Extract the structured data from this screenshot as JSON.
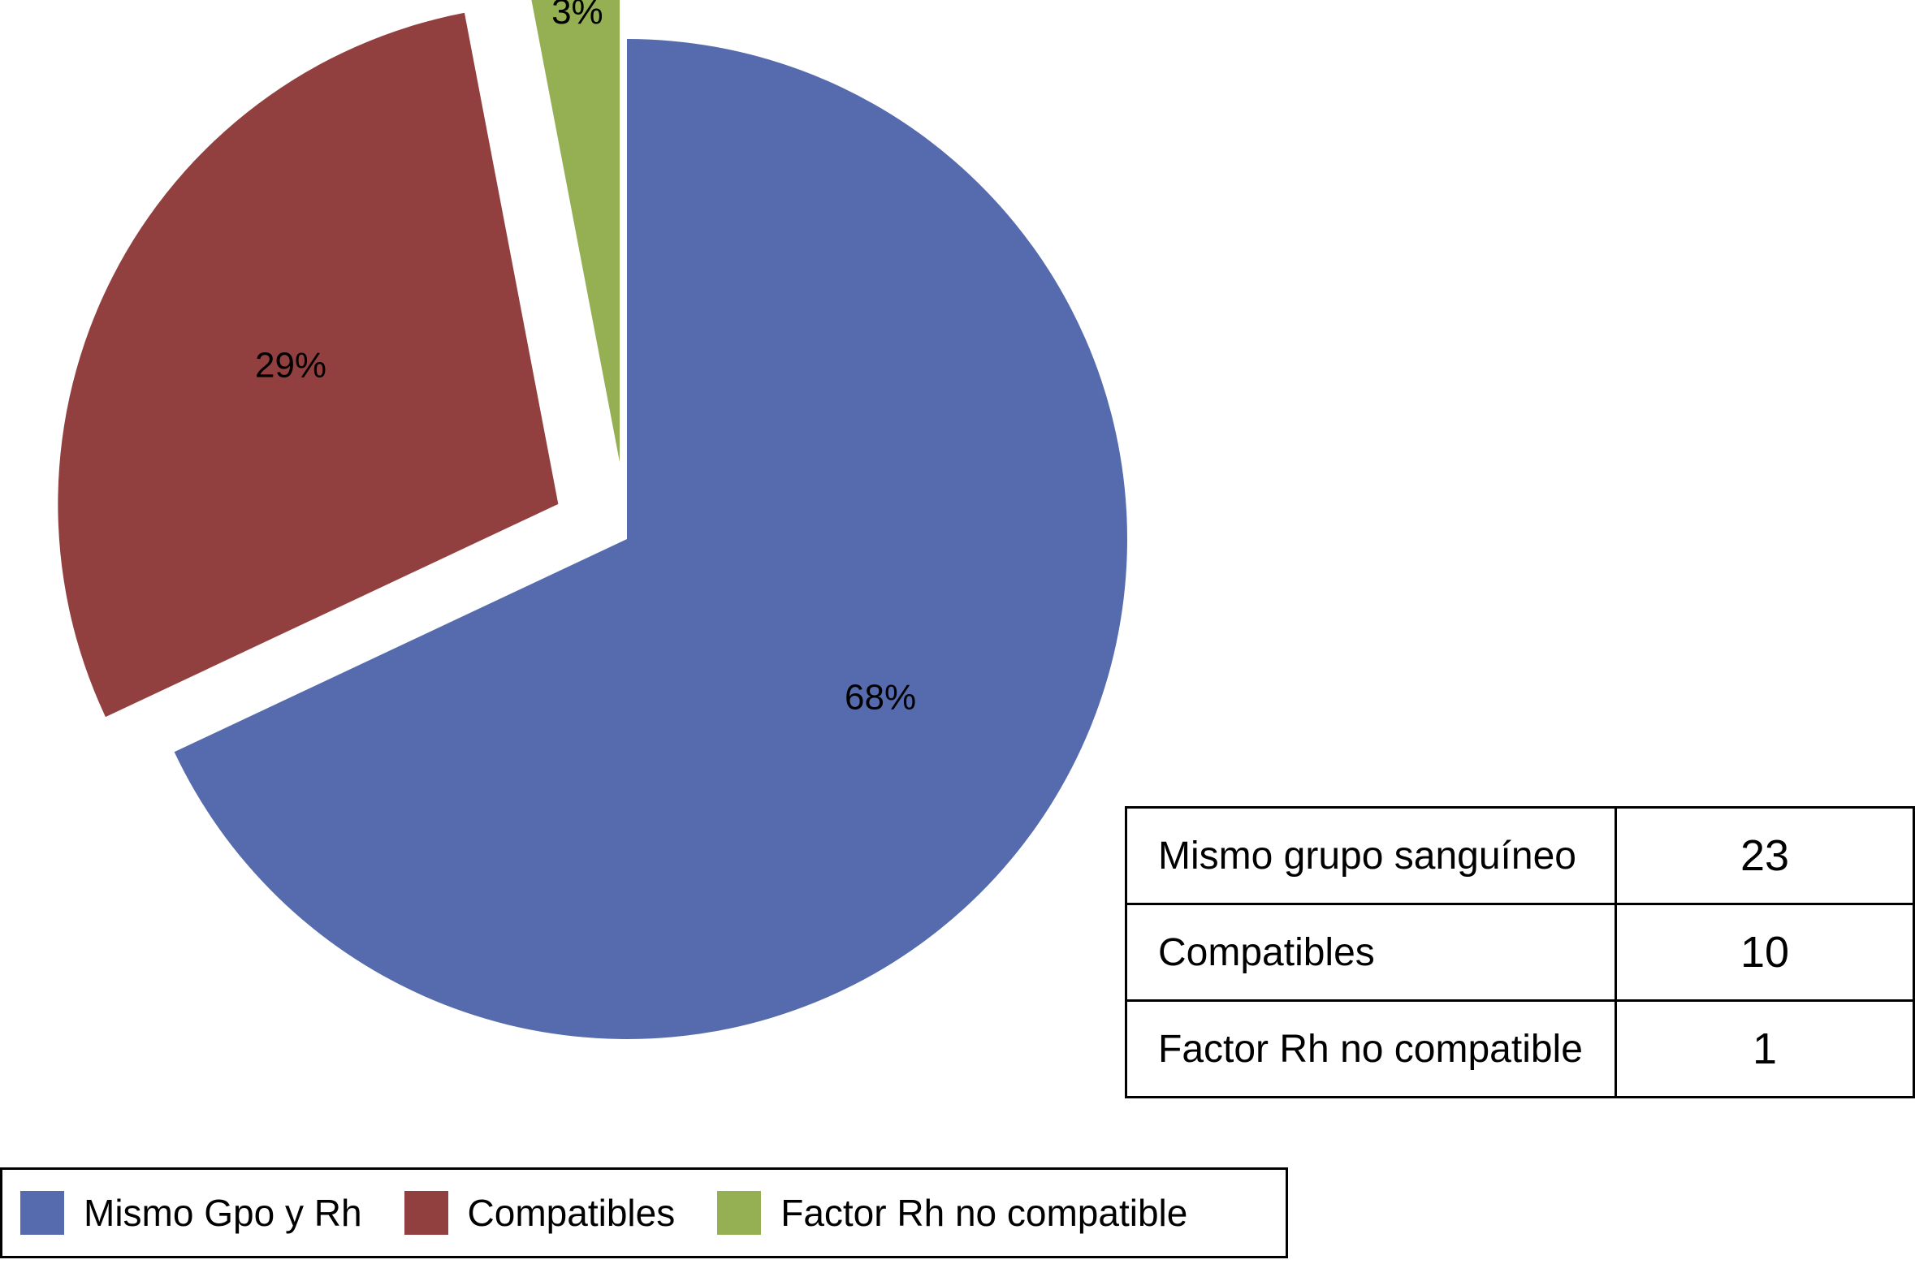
{
  "chart_data": {
    "type": "pie",
    "title": "",
    "slices": [
      {
        "label": "Mismo Gpo y Rh",
        "percent": 68,
        "value_label": "68%",
        "color": "#556BAD",
        "exploded": false
      },
      {
        "label": "Compatibles",
        "percent": 29,
        "value_label": "29%",
        "color": "#91403F",
        "exploded": true
      },
      {
        "label": "Factor Rh no compatible",
        "percent": 3,
        "value_label": "3%",
        "color": "#95B052",
        "exploded": true
      }
    ],
    "legend_position": "bottom-left"
  },
  "table": {
    "rows": [
      {
        "label": "Mismo grupo sanguíneo",
        "value": "23"
      },
      {
        "label": "Compatibles",
        "value": "10"
      },
      {
        "label": "Factor Rh no compatible",
        "value": "1"
      }
    ]
  },
  "legend": {
    "items": [
      {
        "label": "Mismo Gpo y Rh",
        "color": "#556BAD"
      },
      {
        "label": "Compatibles",
        "color": "#91403F"
      },
      {
        "label": "Factor Rh no compatible",
        "color": "#95B052"
      }
    ]
  }
}
